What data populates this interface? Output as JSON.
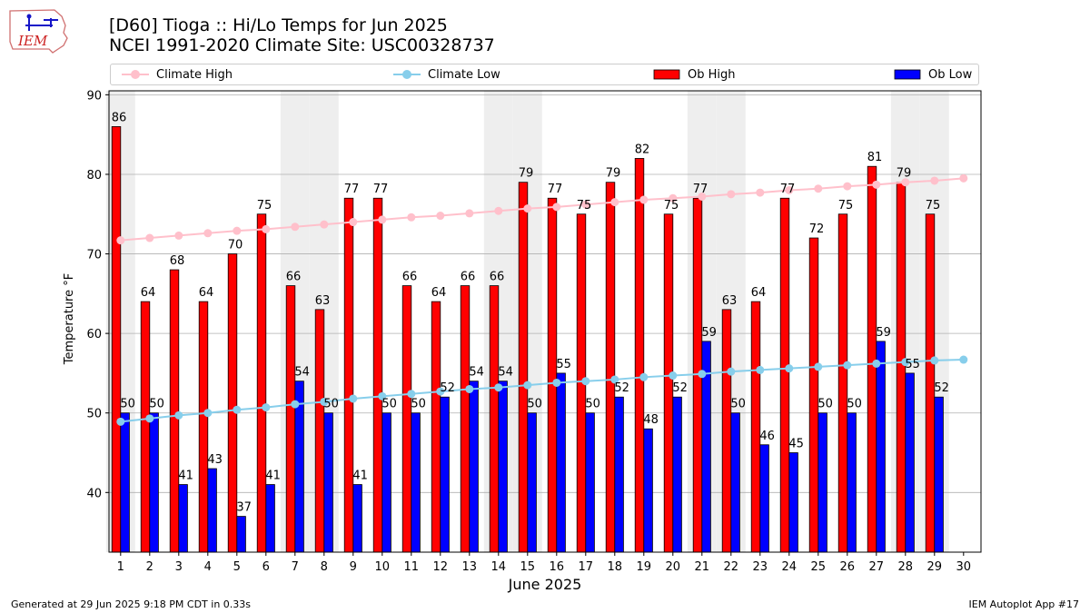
{
  "header": {
    "title_line1": "[D60] Tioga :: Hi/Lo Temps for Jun 2025",
    "title_line2": "NCEI 1991-2020 Climate Site: USC00328737",
    "logo_text": "IEM"
  },
  "legend": {
    "climate_high": "Climate High",
    "climate_low": "Climate Low",
    "ob_high": "Ob High",
    "ob_low": "Ob Low"
  },
  "footer": {
    "generated": "Generated at 29 Jun 2025 9:18 PM CDT in 0.33s",
    "app": "IEM Autoplot App #17"
  },
  "colors": {
    "ob_high": "#ff0000",
    "ob_low": "#0000ff",
    "climate_high": "#ffc0cb",
    "climate_low": "#87ceeb",
    "weekend_shade": "#eeeeee",
    "grid": "#b0b0b0"
  },
  "chart_data": {
    "type": "bar",
    "title": "[D60] Tioga :: Hi/Lo Temps for Jun 2025",
    "subtitle": "NCEI 1991-2020 Climate Site: USC00328737",
    "xlabel": "June 2025",
    "ylabel": "Temperature °F",
    "ylim": [
      32.5,
      90.5
    ],
    "yticks": [
      40,
      50,
      60,
      70,
      80,
      90
    ],
    "grid": "horizontal",
    "legend_position": "top",
    "days": [
      1,
      2,
      3,
      4,
      5,
      6,
      7,
      8,
      9,
      10,
      11,
      12,
      13,
      14,
      15,
      16,
      17,
      18,
      19,
      20,
      21,
      22,
      23,
      24,
      25,
      26,
      27,
      28,
      29,
      30
    ],
    "shaded_days": [
      1,
      7,
      8,
      14,
      15,
      21,
      22,
      28,
      29
    ],
    "series": [
      {
        "name": "Ob High",
        "kind": "bar",
        "values": [
          86,
          64,
          68,
          64,
          70,
          75,
          66,
          63,
          77,
          77,
          66,
          64,
          66,
          66,
          79,
          77,
          75,
          79,
          82,
          75,
          77,
          63,
          64,
          77,
          72,
          75,
          81,
          79,
          75
        ]
      },
      {
        "name": "Ob Low",
        "kind": "bar",
        "values": [
          50,
          50,
          41,
          43,
          37,
          41,
          54,
          50,
          41,
          50,
          50,
          52,
          54,
          54,
          50,
          55,
          50,
          52,
          48,
          52,
          59,
          50,
          46,
          45,
          50,
          50,
          59,
          55,
          52
        ]
      },
      {
        "name": "Climate High",
        "kind": "line",
        "values": [
          71.7,
          72.0,
          72.3,
          72.6,
          72.9,
          73.1,
          73.4,
          73.7,
          74.0,
          74.3,
          74.6,
          74.8,
          75.1,
          75.4,
          75.7,
          75.9,
          76.2,
          76.5,
          76.8,
          77.0,
          77.2,
          77.5,
          77.7,
          78.0,
          78.2,
          78.5,
          78.7,
          79.0,
          79.2,
          79.5
        ]
      },
      {
        "name": "Climate Low",
        "kind": "line",
        "values": [
          48.9,
          49.3,
          49.7,
          50.0,
          50.4,
          50.7,
          51.1,
          51.4,
          51.8,
          52.1,
          52.4,
          52.7,
          53.0,
          53.2,
          53.5,
          53.8,
          54.0,
          54.2,
          54.5,
          54.7,
          54.9,
          55.2,
          55.4,
          55.6,
          55.8,
          56.0,
          56.2,
          56.4,
          56.6,
          56.7
        ]
      }
    ]
  }
}
